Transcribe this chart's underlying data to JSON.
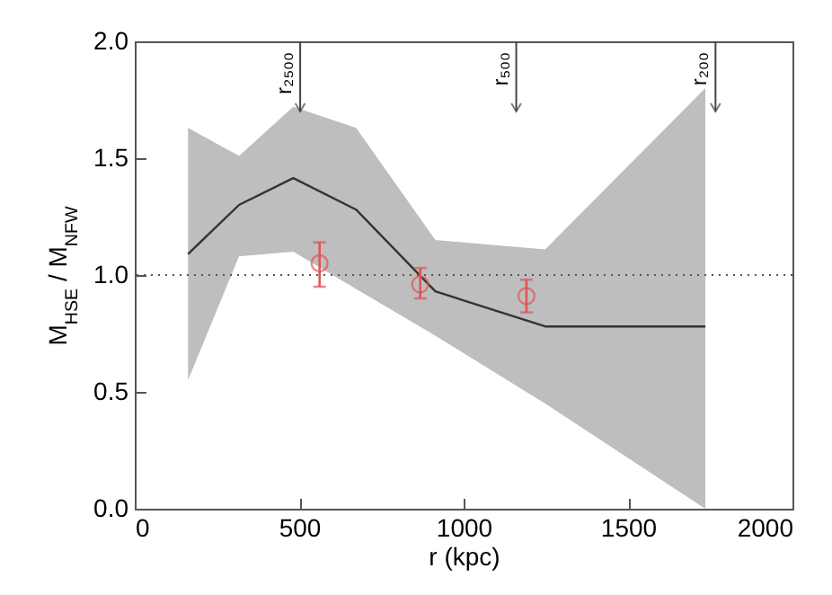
{
  "chart_data": {
    "type": "line",
    "xlabel": "r (kpc)",
    "ylabel": "M$_{HSE}$ / M$_{NFW}$",
    "xlim": [
      0,
      2000
    ],
    "xticks": [
      0,
      500,
      1000,
      1500,
      2000
    ],
    "ylim": [
      0,
      2
    ],
    "yticks": [
      {
        "value": 0,
        "label": "0.0"
      },
      {
        "value": 0.5,
        "label": "0.5"
      },
      {
        "value": 1,
        "label": "1.0"
      },
      {
        "value": 1.5,
        "label": "1.5"
      },
      {
        "value": 2,
        "label": "2.0"
      }
    ],
    "grid": false,
    "series": [
      {
        "color": "#333333",
        "x": [
          162,
          317,
          482,
          673,
          914,
          1248,
          1735
        ],
        "values": [
          1.09,
          1.3,
          1.415,
          1.28,
          0.93,
          0.78,
          0.78
        ],
        "lower": [
          0.55,
          1.08,
          1.1,
          0.94,
          0.74,
          0.45,
          0.0
        ],
        "upper": [
          1.63,
          1.51,
          1.72,
          1.63,
          1.15,
          1.11,
          1.8
        ]
      },
      {
        "type": "scatter",
        "color": "#e05555",
        "marker": "circle",
        "x": [
          562,
          868,
          1191
        ],
        "values": [
          1.05,
          0.96,
          0.91
        ],
        "errors": [
          [
            0.95,
            1.14
          ],
          [
            0.9,
            1.03
          ],
          [
            0.84,
            0.98
          ]
        ]
      }
    ],
    "ref_lines": [
      {
        "axis": "y",
        "value": 1,
        "line_style": "dotted"
      },
      {
        "axis": "x",
        "value": 503,
        "label": "r₂₅₀₀"
      },
      {
        "axis": "x",
        "value": 1160,
        "label": "r₅₀₀"
      },
      {
        "axis": "x",
        "value": 1766,
        "label": "r₂₀₀"
      }
    ]
  }
}
